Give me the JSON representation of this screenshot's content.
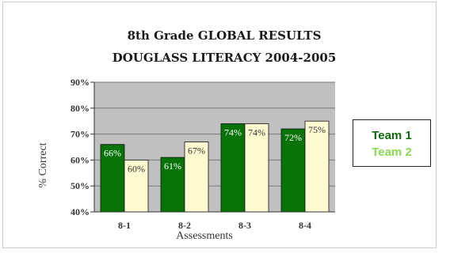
{
  "chart_data": {
    "type": "bar",
    "title": [
      "8th Grade GLOBAL RESULTS",
      "DOUGLASS LITERACY 2004-2005"
    ],
    "xlabel": "Assessments",
    "ylabel": "% Correct",
    "categories": [
      "8-1",
      "8-2",
      "8-3",
      "8-4"
    ],
    "series": [
      {
        "name": "Team 1",
        "values": [
          66,
          61,
          74,
          72
        ],
        "labels": [
          "66%",
          "61%",
          "74%",
          "72%"
        ],
        "color": "#067306",
        "legend_color": "#0c6b0c"
      },
      {
        "name": "Team 2",
        "values": [
          60,
          67,
          74,
          75
        ],
        "labels": [
          "60%",
          "67%",
          "74%",
          "75%"
        ],
        "color": "#fffbd0",
        "legend_color": "#88dd55"
      }
    ],
    "ylim": [
      40,
      90
    ],
    "yticks": [
      "40%",
      "50%",
      "60%",
      "70%",
      "80%",
      "90%"
    ],
    "grid": true,
    "plot_background": "#c0c0c0",
    "legend_position": "right"
  }
}
